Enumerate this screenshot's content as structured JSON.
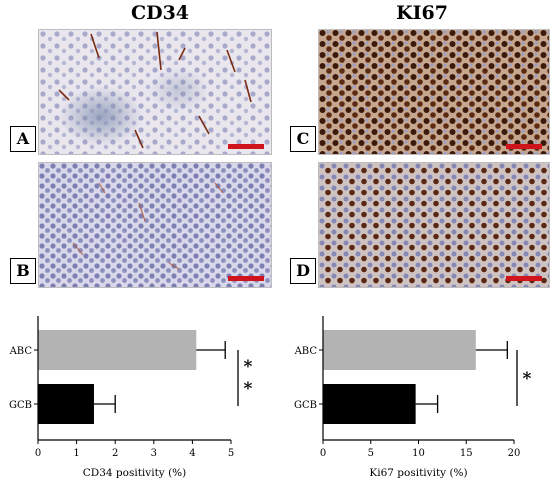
{
  "panels": {
    "col1_title": "CD34",
    "col2_title": "KI67",
    "labels": {
      "a": "A",
      "b": "B",
      "c": "C",
      "d": "D"
    },
    "scale_bar_color": "#d0141c"
  },
  "chart_data": [
    {
      "type": "bar",
      "orientation": "horizontal",
      "categories": [
        "ABC",
        "GCB"
      ],
      "values": [
        4.1,
        1.45
      ],
      "errors": [
        0.75,
        0.55
      ],
      "colors": [
        "#b3b3b3",
        "#000000"
      ],
      "xlabel": "CD34 positivity (%)",
      "xlim": [
        0,
        5
      ],
      "xticks": [
        "0",
        "1",
        "2",
        "3",
        "4",
        "5"
      ],
      "significance": "* *"
    },
    {
      "type": "bar",
      "orientation": "horizontal",
      "categories": [
        "ABC",
        "GCB"
      ],
      "values": [
        16.0,
        9.7
      ],
      "errors": [
        3.3,
        2.3
      ],
      "colors": [
        "#b3b3b3",
        "#000000"
      ],
      "xlabel": "Ki67 positivity (%)",
      "xlim": [
        0,
        20
      ],
      "xticks": [
        "0",
        "5",
        "10",
        "15",
        "20"
      ],
      "significance": "*"
    }
  ]
}
